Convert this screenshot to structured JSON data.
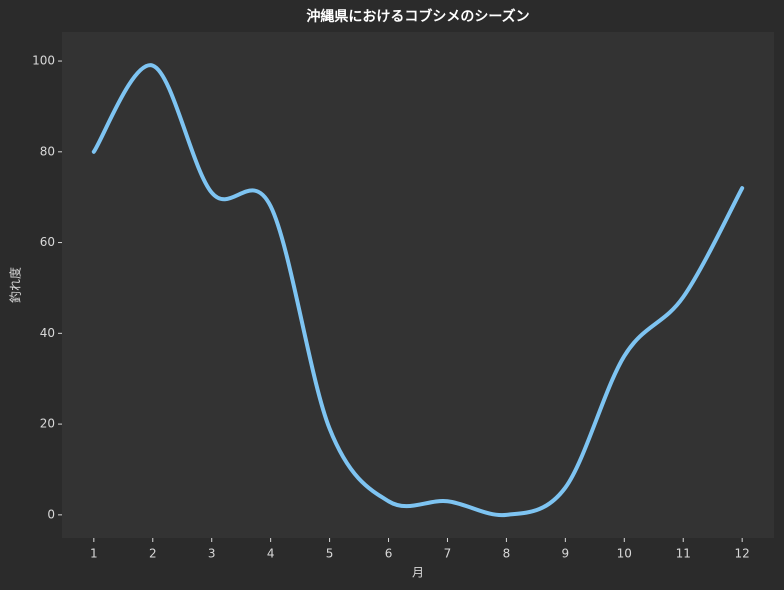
{
  "chart_data": {
    "type": "line",
    "title": "沖縄県におけるコブシメのシーズン",
    "x_label": "月",
    "y_label": "釣れ度",
    "x": [
      1,
      2,
      3,
      4,
      5,
      6,
      7,
      8,
      9,
      10,
      11,
      12
    ],
    "series": [
      {
        "name": "釣れ度",
        "color": "#7ec4f2",
        "values": [
          80,
          99,
          71,
          68,
          19,
          3,
          3,
          0,
          6,
          35,
          48,
          72
        ]
      }
    ],
    "xlim": [
      0.46,
      12.54
    ],
    "xticks": [
      1,
      2,
      3,
      4,
      5,
      6,
      7,
      8,
      9,
      10,
      11,
      12
    ],
    "ylim": [
      -5.1,
      106.4
    ],
    "yticks": [
      0,
      20,
      40,
      60,
      80,
      100
    ],
    "smooth": true,
    "grid": false,
    "background": "#2b2b2b",
    "plot_background": "#333333"
  }
}
